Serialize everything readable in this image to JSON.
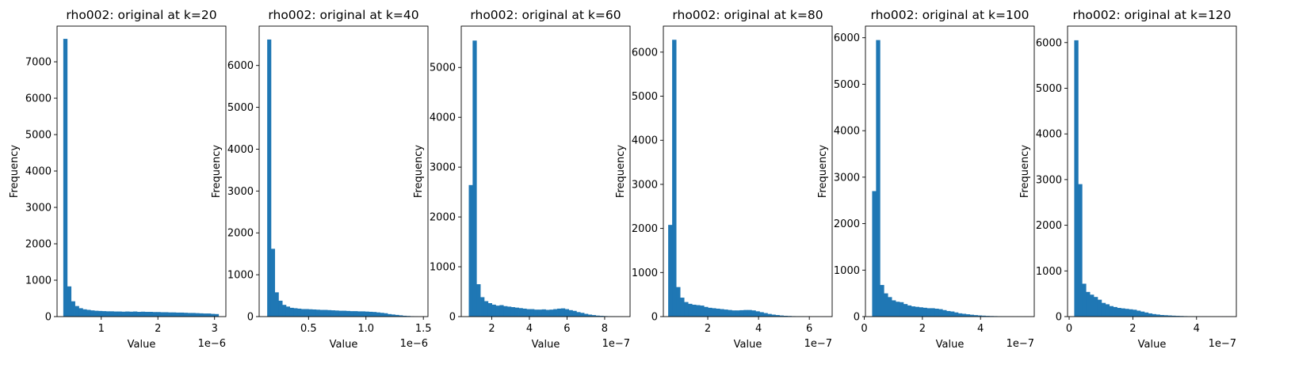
{
  "chart_data": [
    {
      "type": "bar",
      "title": "rho002: original at k=20",
      "xlabel": "Value",
      "ylabel": "Frequency",
      "offset_text": "1e−6",
      "xlim": [
        0.22,
        3.2
      ],
      "ylim": [
        0,
        7980
      ],
      "xticks": [
        1,
        2,
        3
      ],
      "xtick_labels": [
        "1",
        "2",
        "3"
      ],
      "yticks": [
        0,
        1000,
        2000,
        3000,
        4000,
        5000,
        6000,
        7000
      ],
      "ytick_labels": [
        "0",
        "1000",
        "2000",
        "3000",
        "4000",
        "5000",
        "6000",
        "7000"
      ],
      "bin_edges_range": [
        0.33,
        3.07
      ],
      "values": [
        7630,
        830,
        420,
        290,
        230,
        200,
        185,
        170,
        160,
        155,
        150,
        145,
        145,
        140,
        140,
        135,
        140,
        135,
        140,
        130,
        135,
        130,
        130,
        125,
        125,
        120,
        120,
        115,
        115,
        110,
        110,
        105,
        100,
        100,
        95,
        90,
        85,
        85,
        75,
        70
      ]
    },
    {
      "type": "bar",
      "title": "rho002: original at k=40",
      "xlabel": "Value",
      "ylabel": "Frequency",
      "offset_text": "1e−6",
      "xlim": [
        0.07,
        1.54
      ],
      "ylim": [
        0,
        6940
      ],
      "xticks": [
        0.5,
        1.0,
        1.5
      ],
      "xtick_labels": [
        "0.5",
        "1.0",
        "1.5"
      ],
      "yticks": [
        0,
        1000,
        2000,
        3000,
        4000,
        5000,
        6000
      ],
      "ytick_labels": [
        "0",
        "1000",
        "2000",
        "3000",
        "4000",
        "5000",
        "6000"
      ],
      "bin_edges_range": [
        0.14,
        1.45
      ],
      "values": [
        6620,
        1620,
        580,
        380,
        280,
        240,
        210,
        200,
        190,
        180,
        180,
        175,
        170,
        165,
        160,
        160,
        155,
        150,
        145,
        140,
        140,
        135,
        130,
        130,
        125,
        125,
        120,
        115,
        110,
        100,
        90,
        80,
        60,
        50,
        40,
        30,
        20,
        15,
        10,
        5
      ]
    },
    {
      "type": "bar",
      "title": "rho002: original at k=60",
      "xlabel": "Value",
      "ylabel": "Frequency",
      "offset_text": "1e−7",
      "xlim": [
        0.38,
        9.35
      ],
      "ylim": [
        0,
        5830
      ],
      "xticks": [
        2,
        4,
        6,
        8
      ],
      "xtick_labels": [
        "2",
        "4",
        "6",
        "8"
      ],
      "yticks": [
        0,
        1000,
        2000,
        3000,
        4000,
        5000
      ],
      "ytick_labels": [
        "0",
        "1000",
        "2000",
        "3000",
        "4000",
        "5000"
      ],
      "bin_edges_range": [
        0.78,
        8.95
      ],
      "values": [
        2640,
        5540,
        650,
        390,
        310,
        270,
        240,
        220,
        230,
        210,
        200,
        190,
        180,
        170,
        160,
        150,
        150,
        140,
        140,
        145,
        135,
        140,
        150,
        160,
        165,
        150,
        130,
        115,
        90,
        75,
        55,
        40,
        30,
        20,
        15,
        10,
        8,
        6,
        4,
        3
      ]
    },
    {
      "type": "bar",
      "title": "rho002: original at k=80",
      "xlabel": "Value",
      "ylabel": "Frequency",
      "offset_text": "1e−7",
      "xlim": [
        0.25,
        6.9
      ],
      "ylim": [
        0,
        6590
      ],
      "xticks": [
        2,
        4,
        6
      ],
      "xtick_labels": [
        "2",
        "4",
        "6"
      ],
      "yticks": [
        0,
        1000,
        2000,
        3000,
        4000,
        5000,
        6000
      ],
      "ytick_labels": [
        "0",
        "1000",
        "2000",
        "3000",
        "4000",
        "5000",
        "6000"
      ],
      "bin_edges_range": [
        0.44,
        6.7
      ],
      "values": [
        2080,
        6280,
        670,
        430,
        330,
        290,
        270,
        260,
        250,
        220,
        200,
        190,
        180,
        170,
        160,
        150,
        140,
        140,
        145,
        150,
        150,
        140,
        120,
        100,
        80,
        60,
        45,
        35,
        25,
        18,
        14,
        10,
        8,
        6,
        5,
        4,
        3,
        3,
        2,
        2
      ]
    },
    {
      "type": "bar",
      "title": "rho002: original at k=100",
      "xlabel": "Value",
      "ylabel": "Frequency",
      "offset_text": "1e−7",
      "xlim": [
        0.04,
        5.85
      ],
      "ylim": [
        0,
        6250
      ],
      "xticks": [
        0,
        2,
        4
      ],
      "xtick_labels": [
        "0",
        "2",
        "4"
      ],
      "yticks": [
        0,
        1000,
        2000,
        3000,
        4000,
        5000,
        6000
      ],
      "ytick_labels": [
        "0",
        "1000",
        "2000",
        "3000",
        "4000",
        "5000",
        "6000"
      ],
      "bin_edges_range": [
        0.27,
        5.65
      ],
      "values": [
        2700,
        5950,
        680,
        500,
        420,
        350,
        320,
        310,
        270,
        240,
        220,
        210,
        200,
        190,
        180,
        180,
        170,
        160,
        140,
        120,
        110,
        90,
        70,
        60,
        50,
        40,
        32,
        25,
        20,
        15,
        12,
        10,
        8,
        6,
        5,
        4,
        3,
        3,
        2,
        2
      ]
    },
    {
      "type": "bar",
      "title": "rho002: original at k=120",
      "xlabel": "Value",
      "ylabel": "Frequency",
      "offset_text": "1e−7",
      "xlim": [
        -0.05,
        5.25
      ],
      "ylim": [
        0,
        6360
      ],
      "xticks": [
        0,
        2,
        4
      ],
      "xtick_labels": [
        "0",
        "2",
        "4"
      ],
      "yticks": [
        0,
        1000,
        2000,
        3000,
        4000,
        5000,
        6000
      ],
      "ytick_labels": [
        "0",
        "1000",
        "2000",
        "3000",
        "4000",
        "5000",
        "6000"
      ],
      "bin_edges_range": [
        0.16,
        5.05
      ],
      "values": [
        6050,
        2900,
        720,
        540,
        480,
        430,
        370,
        300,
        270,
        230,
        210,
        190,
        180,
        170,
        160,
        150,
        130,
        110,
        90,
        70,
        55,
        45,
        35,
        30,
        25,
        20,
        16,
        13,
        10,
        8,
        7,
        6,
        5,
        4,
        3,
        3,
        2,
        2,
        2,
        2
      ]
    }
  ],
  "colors": {
    "bar": "#1f77b4",
    "axis": "#000000"
  }
}
